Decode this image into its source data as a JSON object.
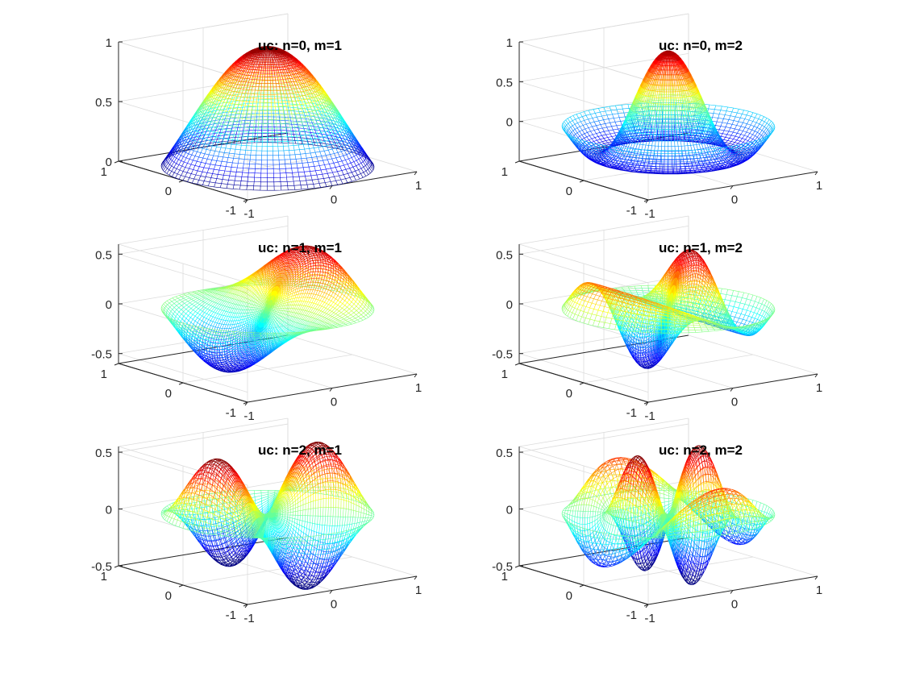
{
  "figure": {
    "background": "#ffffff",
    "layout": [
      3,
      2
    ]
  },
  "chart_data": [
    {
      "type": "surface",
      "title": "uc: n=0, m=1",
      "n": 0,
      "m": 1,
      "colormap": "jet",
      "xlim": [
        -1,
        1
      ],
      "ylim": [
        -1,
        1
      ],
      "zlim": [
        0,
        1
      ],
      "xticks": [
        {
          "v": -1,
          "label": "-1"
        },
        {
          "v": 0,
          "label": "0"
        },
        {
          "v": 1,
          "label": "1"
        }
      ],
      "yticks": [
        {
          "v": -1,
          "label": "-1"
        },
        {
          "v": 0,
          "label": "0"
        },
        {
          "v": 1,
          "label": "1"
        }
      ],
      "zticks": [
        {
          "v": 0,
          "label": "0"
        },
        {
          "v": 0.5,
          "label": "0.5"
        },
        {
          "v": 1,
          "label": "1"
        }
      ],
      "grid": true
    },
    {
      "type": "surface",
      "title": "uc: n=0, m=2",
      "n": 0,
      "m": 2,
      "colormap": "jet",
      "xlim": [
        -1,
        1
      ],
      "ylim": [
        -1,
        1
      ],
      "zlim": [
        -0.5,
        1
      ],
      "xticks": [
        {
          "v": -1,
          "label": "-1"
        },
        {
          "v": 0,
          "label": "0"
        },
        {
          "v": 1,
          "label": "1"
        }
      ],
      "yticks": [
        {
          "v": -1,
          "label": "-1"
        },
        {
          "v": 0,
          "label": "0"
        },
        {
          "v": 1,
          "label": "1"
        }
      ],
      "zticks": [
        {
          "v": 0,
          "label": "0"
        },
        {
          "v": 0.5,
          "label": "0.5"
        },
        {
          "v": 1,
          "label": "1"
        }
      ],
      "grid": true
    },
    {
      "type": "surface",
      "title": "uc: n=1, m=1",
      "n": 1,
      "m": 1,
      "colormap": "jet",
      "xlim": [
        -1,
        1
      ],
      "ylim": [
        -1,
        1
      ],
      "zlim": [
        -0.6,
        0.6
      ],
      "xticks": [
        {
          "v": -1,
          "label": "-1"
        },
        {
          "v": 0,
          "label": "0"
        },
        {
          "v": 1,
          "label": "1"
        }
      ],
      "yticks": [
        {
          "v": -1,
          "label": "-1"
        },
        {
          "v": 0,
          "label": "0"
        },
        {
          "v": 1,
          "label": "1"
        }
      ],
      "zticks": [
        {
          "v": -0.5,
          "label": "-0.5"
        },
        {
          "v": 0,
          "label": "0"
        },
        {
          "v": 0.5,
          "label": "0.5"
        }
      ],
      "grid": true
    },
    {
      "type": "surface",
      "title": "uc: n=1, m=2",
      "n": 1,
      "m": 2,
      "colormap": "jet",
      "xlim": [
        -1,
        1
      ],
      "ylim": [
        -1,
        1
      ],
      "zlim": [
        -0.6,
        0.6
      ],
      "xticks": [
        {
          "v": -1,
          "label": "-1"
        },
        {
          "v": 0,
          "label": "0"
        },
        {
          "v": 1,
          "label": "1"
        }
      ],
      "yticks": [
        {
          "v": -1,
          "label": "-1"
        },
        {
          "v": 0,
          "label": "0"
        },
        {
          "v": 1,
          "label": "1"
        }
      ],
      "zticks": [
        {
          "v": -0.5,
          "label": "-0.5"
        },
        {
          "v": 0,
          "label": "0"
        },
        {
          "v": 0.5,
          "label": "0.5"
        }
      ],
      "grid": true
    },
    {
      "type": "surface",
      "title": "uc: n=2, m=1",
      "n": 2,
      "m": 1,
      "colormap": "jet",
      "xlim": [
        -1,
        1
      ],
      "ylim": [
        -1,
        1
      ],
      "zlim": [
        -0.5,
        0.55
      ],
      "xticks": [
        {
          "v": -1,
          "label": "-1"
        },
        {
          "v": 0,
          "label": "0"
        },
        {
          "v": 1,
          "label": "1"
        }
      ],
      "yticks": [
        {
          "v": -1,
          "label": "-1"
        },
        {
          "v": 0,
          "label": "0"
        },
        {
          "v": 1,
          "label": "1"
        }
      ],
      "zticks": [
        {
          "v": -0.5,
          "label": "-0.5"
        },
        {
          "v": 0,
          "label": "0"
        },
        {
          "v": 0.5,
          "label": "0.5"
        }
      ],
      "grid": true
    },
    {
      "type": "surface",
      "title": "uc: n=2, m=2",
      "n": 2,
      "m": 2,
      "colormap": "jet",
      "xlim": [
        -1,
        1
      ],
      "ylim": [
        -1,
        1
      ],
      "zlim": [
        -0.5,
        0.55
      ],
      "xticks": [
        {
          "v": -1,
          "label": "-1"
        },
        {
          "v": 0,
          "label": "0"
        },
        {
          "v": 1,
          "label": "1"
        }
      ],
      "yticks": [
        {
          "v": -1,
          "label": "-1"
        },
        {
          "v": 0,
          "label": "0"
        },
        {
          "v": 1,
          "label": "1"
        }
      ],
      "zticks": [
        {
          "v": -0.5,
          "label": "-0.5"
        },
        {
          "v": 0,
          "label": "0"
        },
        {
          "v": 0.5,
          "label": "0.5"
        }
      ],
      "grid": true
    }
  ]
}
